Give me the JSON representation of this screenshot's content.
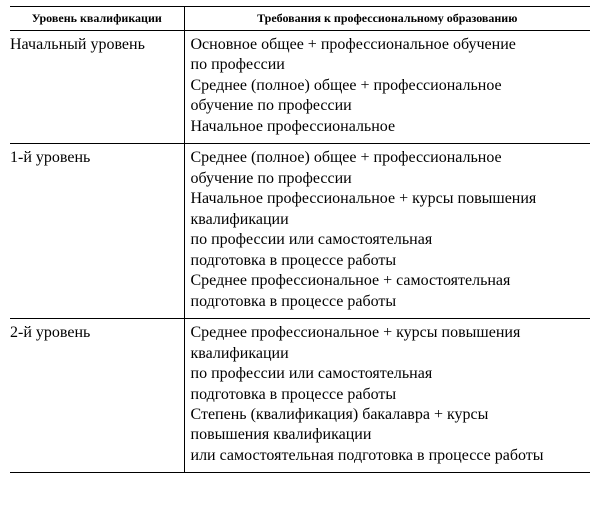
{
  "table": {
    "columns": {
      "level": "Уровень квалификации",
      "requirements": "Требования к профессиональному образованию"
    },
    "rows": [
      {
        "level": "Начальный уровень",
        "lines": [
          "Основное общее + профессиональное обучение",
          "по профессии",
          "Среднее (полное) общее + профессиональное",
          "обучение по профессии",
          "Начальное профессиональное"
        ]
      },
      {
        "level": "1-й уровень",
        "lines": [
          "Среднее (полное) общее + профессиональное",
          "обучение по профессии",
          "Начальное профессиональное + курсы повышения",
          "квалификации",
          "по профессии или самостоятельная",
          "подготовка в процессе работы",
          "Среднее профессиональное + самостоятельная",
          "подготовка в процессе работы"
        ]
      },
      {
        "level": "2-й уровень",
        "lines": [
          "Среднее профессиональное + курсы повышения",
          "квалификации",
          "по профессии или самостоятельная",
          "подготовка в процессе работы",
          "Степень (квалификация) бакалавра + курсы",
          "повышения квалификации",
          "или самостоятельная подготовка в процессе работы"
        ]
      }
    ]
  },
  "style": {
    "font_family": "Times New Roman",
    "header_fontsize_pt": 9,
    "body_fontsize_pt": 12,
    "border_color": "#000000",
    "background_color": "#ffffff",
    "text_color": "#000000",
    "col_widths_pct": [
      30,
      70
    ]
  }
}
